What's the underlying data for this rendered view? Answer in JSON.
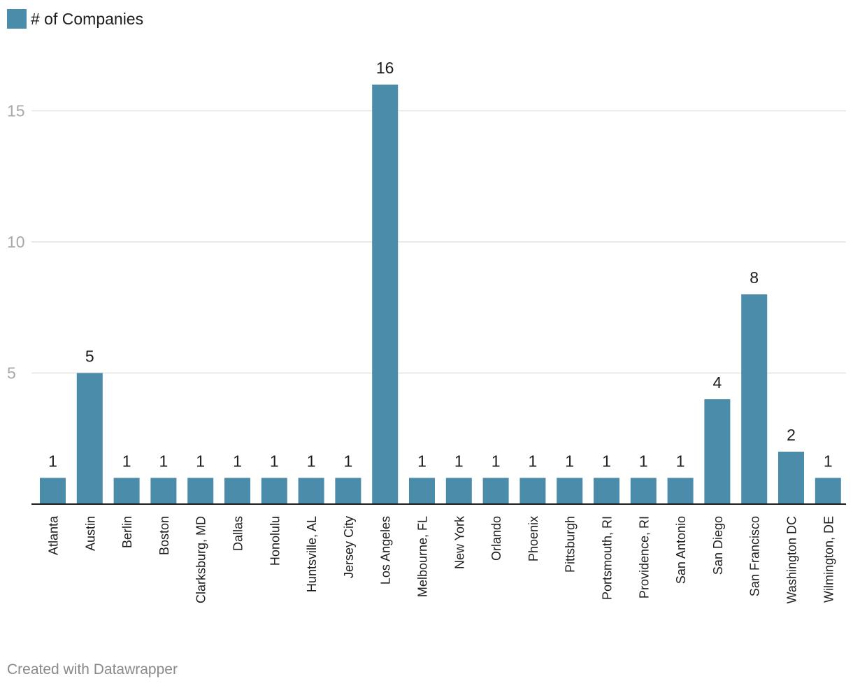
{
  "legend": {
    "label": "# of Companies",
    "color": "#4a8caa"
  },
  "chart_data": {
    "type": "bar",
    "categories": [
      "Atlanta",
      "Austin",
      "Berlin",
      "Boston",
      "Clarksburg, MD",
      "Dallas",
      "Honolulu",
      "Huntsville, AL",
      "Jersey City",
      "Los Angeles",
      "Melbourne, FL",
      "New York",
      "Orlando",
      "Phoenix",
      "Pittsburgh",
      "Portsmouth, RI",
      "Providence, RI",
      "San Antonio",
      "San Diego",
      "San Francisco",
      "Washington DC",
      "Wilmington, DE"
    ],
    "series": [
      {
        "name": "# of Companies",
        "values": [
          1,
          5,
          1,
          1,
          1,
          1,
          1,
          1,
          1,
          16,
          1,
          1,
          1,
          1,
          1,
          1,
          1,
          1,
          4,
          8,
          2,
          1
        ]
      }
    ],
    "yticks": [
      5,
      10,
      15
    ],
    "ylim": [
      0,
      16
    ],
    "grid": true,
    "data_labels": true,
    "bar_color": "#4a8caa",
    "legend_position": "top-left"
  },
  "footer": {
    "credit": "Created with Datawrapper"
  }
}
